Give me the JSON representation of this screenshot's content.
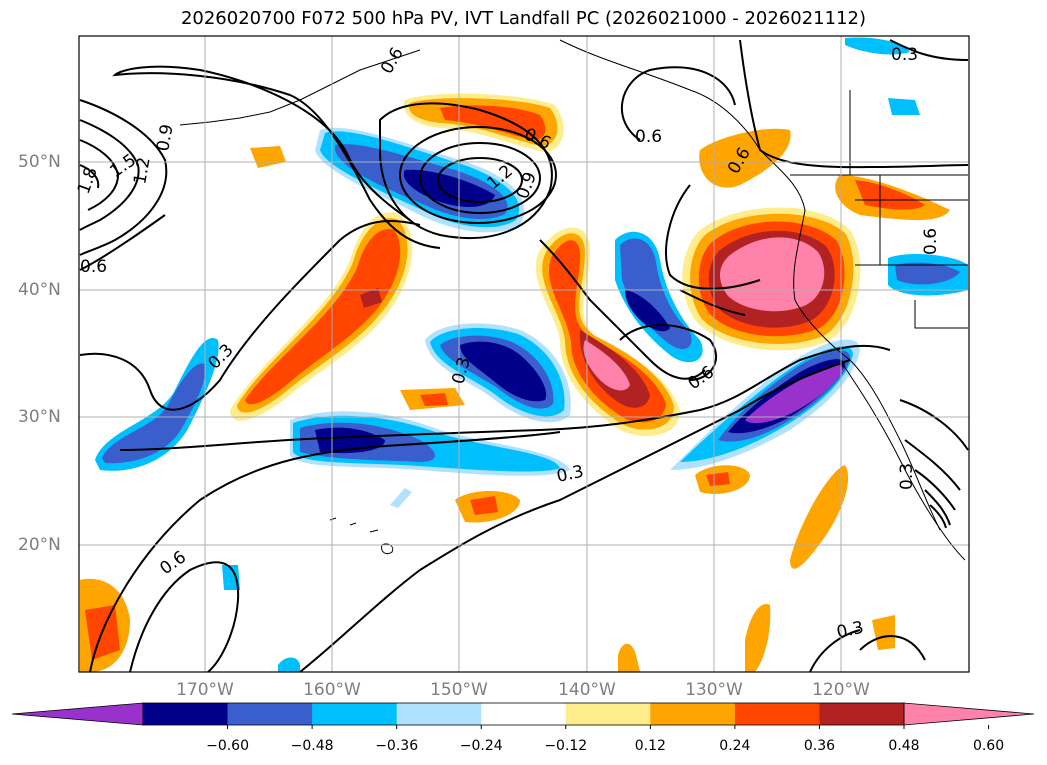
{
  "title": "2026020700 F072 500 hPa PV, IVT Landfall PC (2026021000 - 2026021112)",
  "lon_labels": [
    "170°W",
    "160°W",
    "150°W",
    "140°W",
    "130°W",
    "120°W"
  ],
  "lat_labels": [
    "50°N",
    "40°N",
    "30°N",
    "20°N"
  ],
  "colorbar": {
    "colors": [
      "#9932cc",
      "#00008b",
      "#3a5fcd",
      "#00bfff",
      "#b0e2ff",
      "#ffffff",
      "#ffec8b",
      "#ffa500",
      "#ff4500",
      "#b22222",
      "#ff82ab"
    ],
    "ticks": [
      "−0.60",
      "−0.48",
      "−0.36",
      "−0.24",
      "−0.12",
      "0.12",
      "0.24",
      "0.36",
      "0.48",
      "0.60"
    ]
  },
  "contour_labels": [
    "0.6",
    "0.6",
    "0.6",
    "0.6",
    "0.6",
    "0.6",
    "0.6",
    "0.6",
    "0.3",
    "0.3",
    "0.3",
    "0.3",
    "0.3",
    "0.3",
    "0.9",
    "0.9",
    "1.2",
    "1.2",
    "1.5",
    "1.8"
  ]
}
